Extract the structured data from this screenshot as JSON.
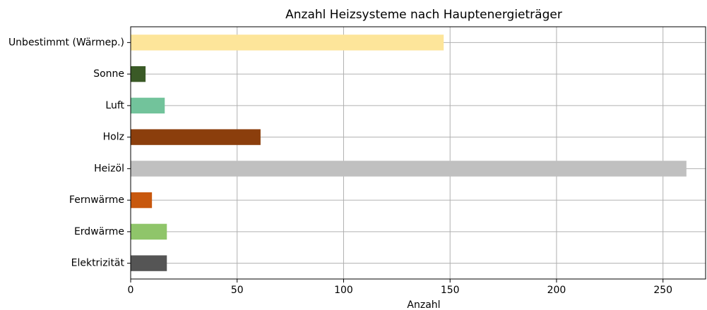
{
  "chart_data": {
    "type": "barh",
    "title": "Anzahl Heizsysteme nach Hauptenergieträger",
    "xlabel": "Anzahl",
    "categories": [
      "Elektrizität",
      "Erdwärme",
      "Fernwärme",
      "Heizöl",
      "Holz",
      "Luft",
      "Sonne",
      "Unbestimmt (Wärmep.)"
    ],
    "values": [
      17,
      17,
      10,
      261,
      61,
      16,
      7,
      147
    ],
    "colors": [
      "#555555",
      "#8fc56a",
      "#c8580e",
      "#c0c0c0",
      "#8b3e0c",
      "#72c39b",
      "#3a5a26",
      "#fde59a"
    ],
    "xlim": [
      0,
      270
    ],
    "xticks": [
      0,
      50,
      100,
      150,
      200,
      250
    ],
    "grid": true
  }
}
